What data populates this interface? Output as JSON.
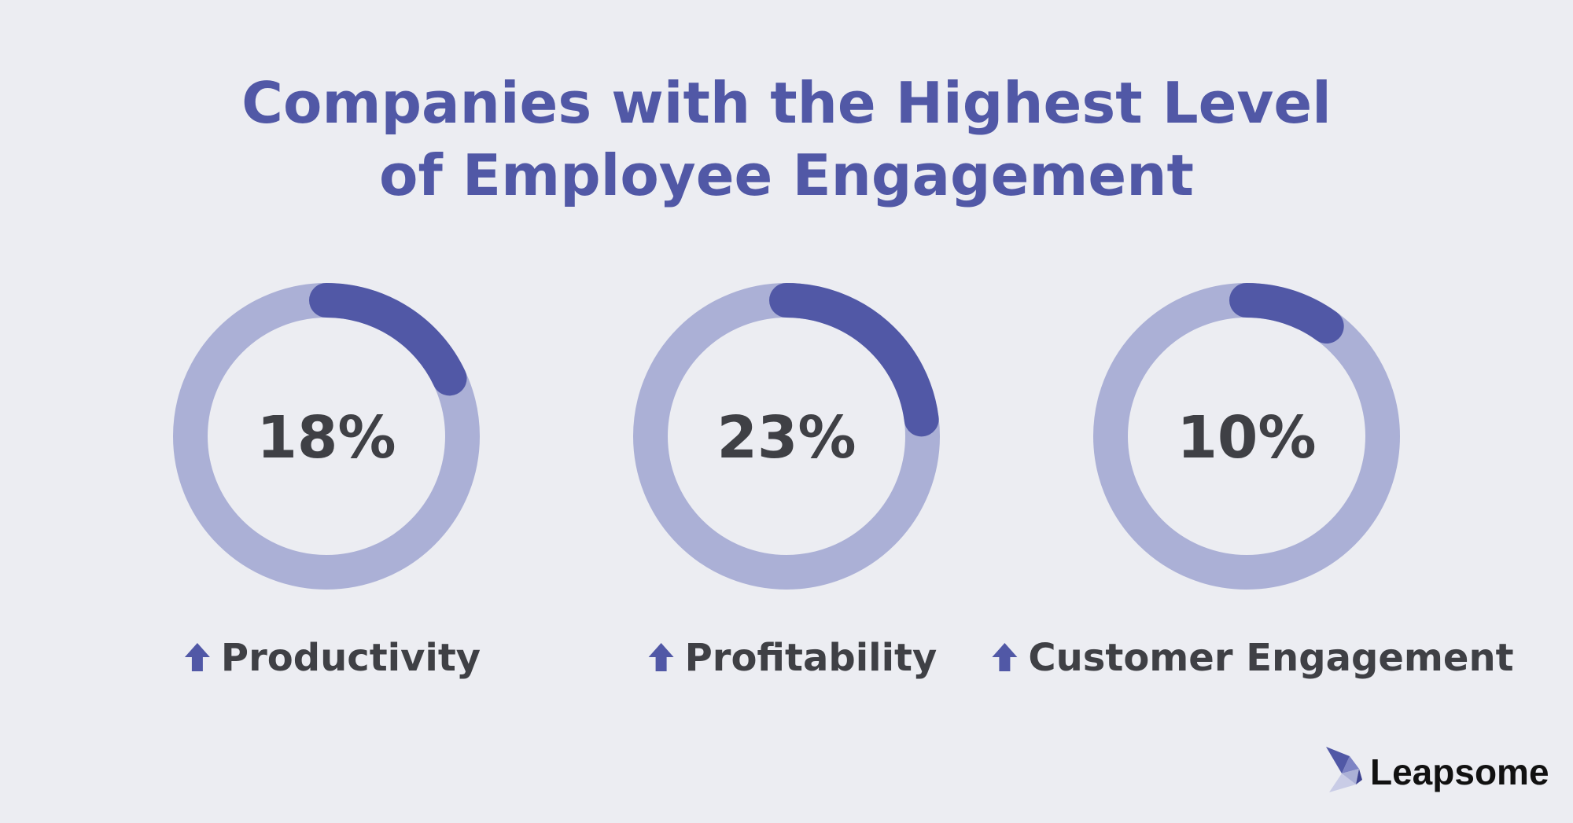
{
  "title": {
    "line1": "Companies with the Highest Level",
    "line2": "of Employee Engagement"
  },
  "colors": {
    "background": "#ecedf2",
    "track": "#abb0d6",
    "arc": "#5158a6",
    "title": "#5158a6",
    "text": "#3f4045",
    "arrow": "#5158a6"
  },
  "chart_data": {
    "type": "donut",
    "unit": "%",
    "max": 100,
    "categories": [
      "Productivity",
      "Profitability",
      "Customer Engagement"
    ],
    "values": [
      18,
      23,
      10
    ],
    "value_labels": [
      "18%",
      "23%",
      "10%"
    ],
    "indicator": "up-arrow"
  },
  "brand": {
    "name": "Leapsome",
    "icon": "leapsome-bird-logo"
  }
}
